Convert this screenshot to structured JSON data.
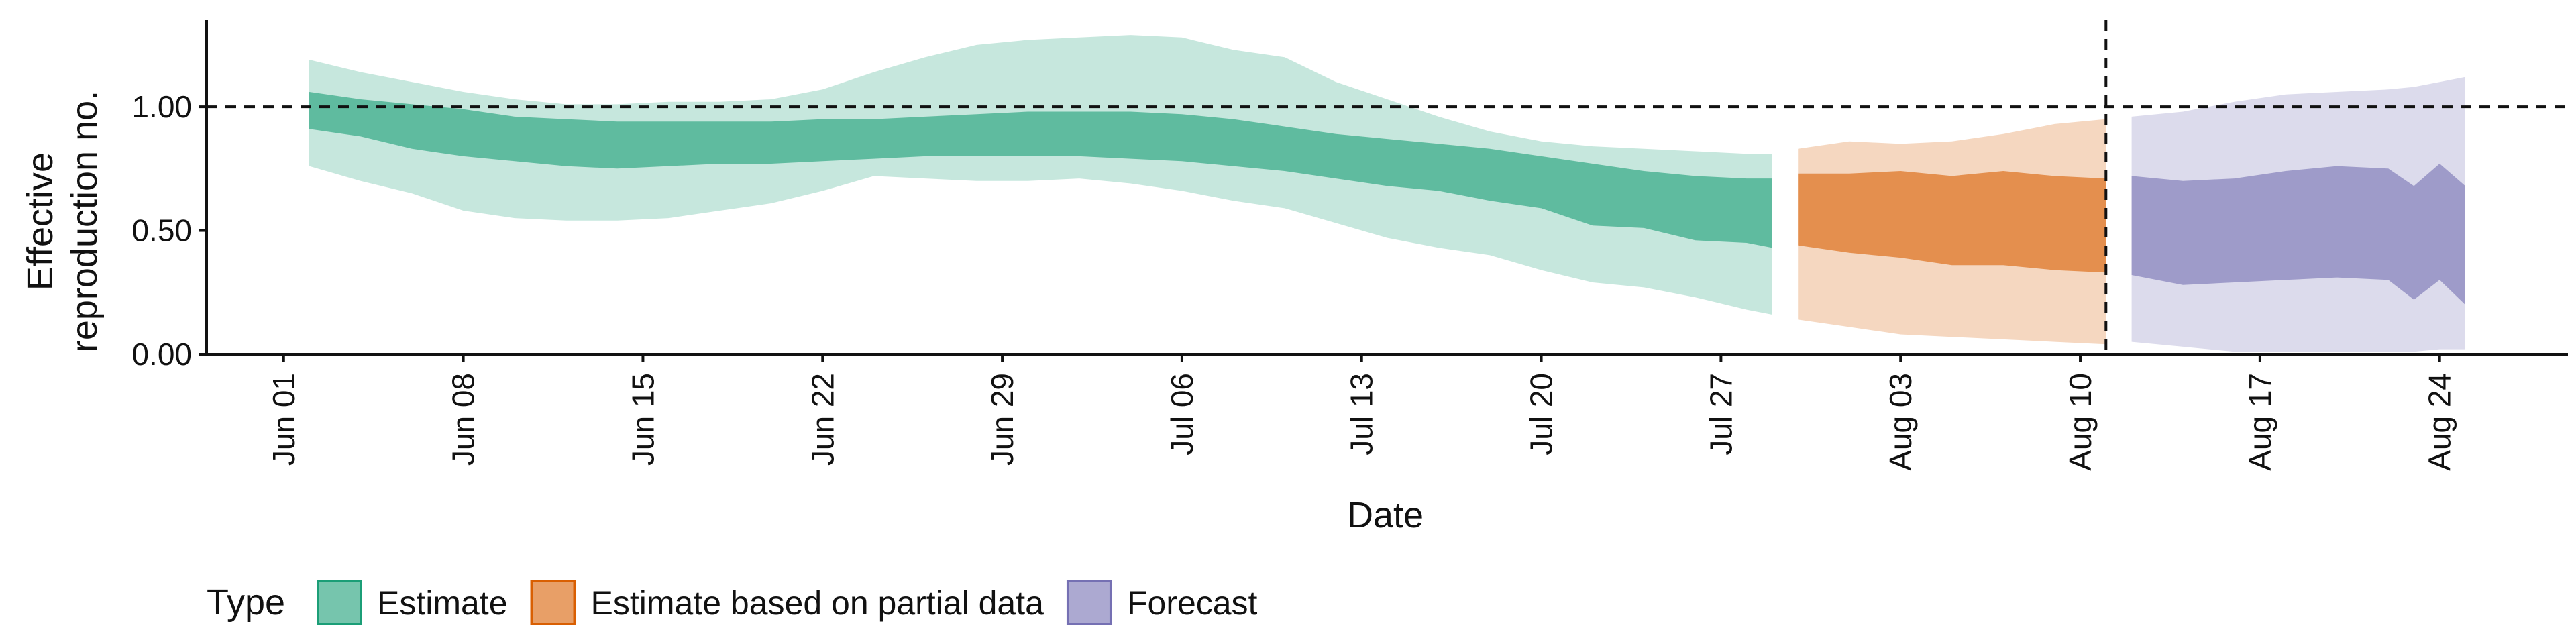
{
  "chart_data": {
    "type": "area",
    "title": "",
    "xlabel": "Date",
    "ylabel": [
      "Effective",
      "reproduction no."
    ],
    "ylim": [
      0,
      1.35
    ],
    "yticks": [
      0.0,
      0.5,
      1.0
    ],
    "ytick_labels": [
      "0.00",
      "0.50",
      "1.00"
    ],
    "xlim": [
      "2020-05-29",
      "2020-08-29"
    ],
    "xticks": [
      "2020-06-01",
      "2020-06-08",
      "2020-06-15",
      "2020-06-22",
      "2020-06-29",
      "2020-07-06",
      "2020-07-13",
      "2020-07-20",
      "2020-07-27",
      "2020-08-03",
      "2020-08-10",
      "2020-08-17",
      "2020-08-24"
    ],
    "xtick_labels": [
      "Jun 01",
      "Jun 08",
      "Jun 15",
      "Jun 22",
      "Jun 29",
      "Jul 06",
      "Jul 13",
      "Jul 20",
      "Jul 27",
      "Aug 03",
      "Aug 10",
      "Aug 17",
      "Aug 24"
    ],
    "reference_hline": 1.0,
    "reference_vline": "2020-08-11",
    "legend": {
      "title": "Type",
      "placement": "bottom-left",
      "entries": [
        {
          "label": "Estimate",
          "color": "#1b9e77"
        },
        {
          "label": "Estimate based on partial data",
          "color": "#d95f02"
        },
        {
          "label": "Forecast",
          "color": "#7570b3"
        }
      ]
    },
    "series": [
      {
        "name": "Estimate",
        "color": "#1b9e77",
        "x": [
          "2020-06-02",
          "2020-06-04",
          "2020-06-06",
          "2020-06-08",
          "2020-06-10",
          "2020-06-12",
          "2020-06-14",
          "2020-06-16",
          "2020-06-18",
          "2020-06-20",
          "2020-06-22",
          "2020-06-24",
          "2020-06-26",
          "2020-06-28",
          "2020-06-30",
          "2020-07-02",
          "2020-07-04",
          "2020-07-06",
          "2020-07-08",
          "2020-07-10",
          "2020-07-12",
          "2020-07-14",
          "2020-07-16",
          "2020-07-18",
          "2020-07-20",
          "2020-07-22",
          "2020-07-24",
          "2020-07-26",
          "2020-07-28",
          "2020-07-29"
        ],
        "lower_90": [
          0.76,
          0.7,
          0.65,
          0.58,
          0.55,
          0.54,
          0.54,
          0.55,
          0.58,
          0.61,
          0.66,
          0.72,
          0.71,
          0.7,
          0.7,
          0.71,
          0.69,
          0.66,
          0.62,
          0.59,
          0.53,
          0.47,
          0.43,
          0.4,
          0.34,
          0.29,
          0.27,
          0.23,
          0.18,
          0.16
        ],
        "lower_50": [
          0.91,
          0.88,
          0.83,
          0.8,
          0.78,
          0.76,
          0.75,
          0.76,
          0.77,
          0.77,
          0.78,
          0.79,
          0.8,
          0.8,
          0.8,
          0.8,
          0.79,
          0.78,
          0.76,
          0.74,
          0.71,
          0.68,
          0.66,
          0.62,
          0.59,
          0.52,
          0.51,
          0.46,
          0.45,
          0.43
        ],
        "upper_50": [
          1.06,
          1.03,
          1.01,
          0.99,
          0.96,
          0.95,
          0.94,
          0.94,
          0.94,
          0.94,
          0.95,
          0.95,
          0.96,
          0.97,
          0.98,
          0.98,
          0.98,
          0.97,
          0.95,
          0.92,
          0.89,
          0.87,
          0.85,
          0.83,
          0.8,
          0.77,
          0.74,
          0.72,
          0.71,
          0.71
        ],
        "upper_90": [
          1.19,
          1.14,
          1.1,
          1.06,
          1.03,
          1.01,
          1.01,
          1.02,
          1.02,
          1.03,
          1.07,
          1.14,
          1.2,
          1.25,
          1.27,
          1.28,
          1.29,
          1.28,
          1.23,
          1.2,
          1.1,
          1.03,
          0.96,
          0.9,
          0.86,
          0.84,
          0.83,
          0.82,
          0.81,
          0.81
        ]
      },
      {
        "name": "Estimate based on partial data",
        "color": "#d95f02",
        "x": [
          "2020-07-30",
          "2020-08-01",
          "2020-08-03",
          "2020-08-05",
          "2020-08-07",
          "2020-08-09",
          "2020-08-11"
        ],
        "lower_90": [
          0.14,
          0.11,
          0.08,
          0.07,
          0.06,
          0.05,
          0.04
        ],
        "lower_50": [
          0.44,
          0.41,
          0.39,
          0.36,
          0.36,
          0.34,
          0.33
        ],
        "upper_50": [
          0.73,
          0.73,
          0.74,
          0.72,
          0.74,
          0.72,
          0.71
        ],
        "upper_90": [
          0.83,
          0.86,
          0.85,
          0.86,
          0.89,
          0.93,
          0.95
        ]
      },
      {
        "name": "Forecast",
        "color": "#7570b3",
        "x": [
          "2020-08-12",
          "2020-08-14",
          "2020-08-16",
          "2020-08-18",
          "2020-08-20",
          "2020-08-22",
          "2020-08-23",
          "2020-08-24",
          "2020-08-25"
        ],
        "lower_90": [
          0.05,
          0.03,
          0.01,
          0.01,
          0.01,
          0.01,
          0.01,
          0.02,
          0.02
        ],
        "lower_50": [
          0.32,
          0.28,
          0.29,
          0.3,
          0.31,
          0.3,
          0.22,
          0.3,
          0.2
        ],
        "upper_50": [
          0.72,
          0.7,
          0.71,
          0.74,
          0.76,
          0.75,
          0.68,
          0.77,
          0.68
        ],
        "upper_90": [
          0.96,
          0.98,
          1.02,
          1.05,
          1.06,
          1.07,
          1.08,
          1.1,
          1.12
        ]
      }
    ]
  }
}
